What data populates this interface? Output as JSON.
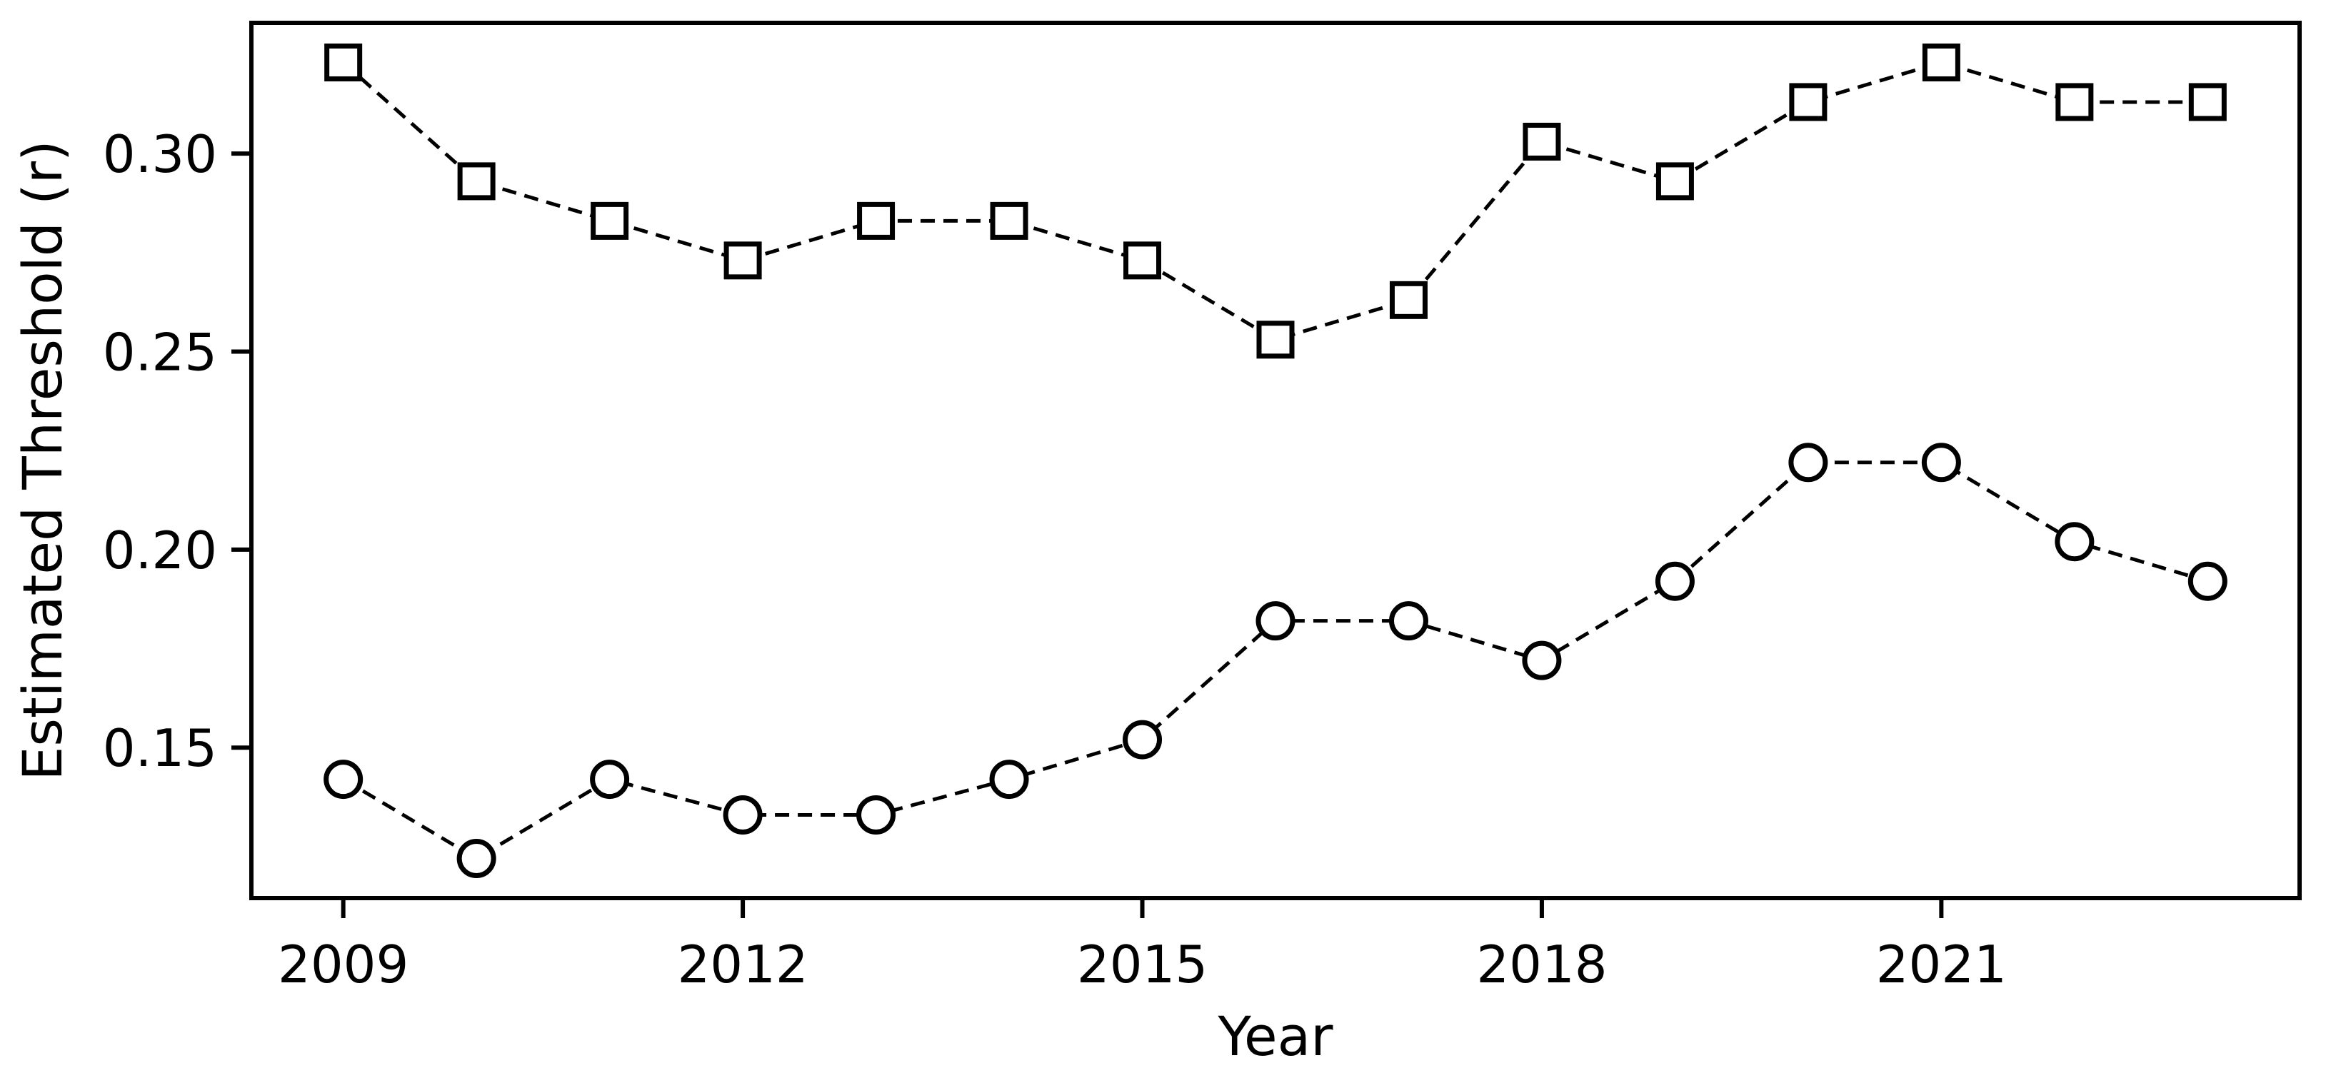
{
  "figure": {
    "background": "#ffffff",
    "foreground": "#000000"
  },
  "chart_data": {
    "type": "line",
    "title": "",
    "xlabel": "Year",
    "ylabel": "Estimated Threshold (r)",
    "x": [
      2009,
      2010,
      2011,
      2012,
      2013,
      2014,
      2015,
      2016,
      2017,
      2018,
      2019,
      2020,
      2021,
      2022,
      2023
    ],
    "series": [
      {
        "name": "upper-series",
        "marker": "square",
        "linestyle": "dashed",
        "color": "#000000",
        "marker_fill": "#ffffff",
        "values": [
          0.323,
          0.293,
          0.283,
          0.273,
          0.283,
          0.283,
          0.273,
          0.253,
          0.263,
          0.303,
          0.293,
          0.313,
          0.323,
          0.313,
          0.313
        ]
      },
      {
        "name": "lower-series",
        "marker": "circle",
        "linestyle": "dashed",
        "color": "#000000",
        "marker_fill": "#ffffff",
        "values": [
          0.142,
          0.122,
          0.142,
          0.133,
          0.133,
          0.142,
          0.152,
          0.182,
          0.182,
          0.172,
          0.192,
          0.222,
          0.222,
          0.202,
          0.192
        ]
      }
    ],
    "xlim": [
      2008.31,
      2023.69
    ],
    "ylim": [
      0.112,
      0.333
    ],
    "xticks": [
      2009,
      2012,
      2015,
      2018,
      2021
    ],
    "xtick_labels": [
      "2009",
      "2012",
      "2015",
      "2018",
      "2021"
    ],
    "yticks": [
      0.15,
      0.2,
      0.25,
      0.3
    ],
    "ytick_labels": [
      "0.15",
      "0.20",
      "0.25",
      "0.30"
    ],
    "grid": false,
    "legend": "none"
  }
}
